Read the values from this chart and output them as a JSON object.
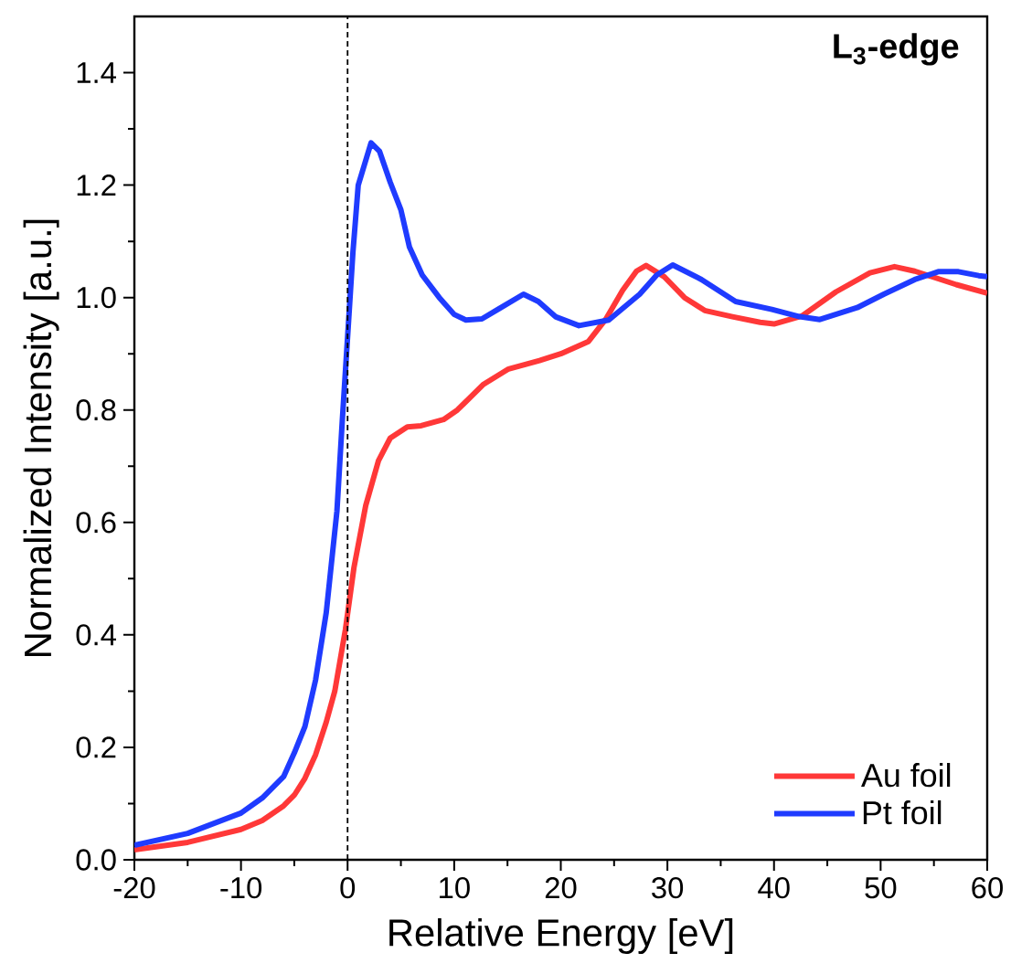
{
  "chart_data": {
    "type": "line",
    "title": "L$_{3}$-edge",
    "xlabel": "Relative Energy [eV]",
    "ylabel": "Normalized Intensity [a.u.]",
    "xlim": [
      -20,
      60
    ],
    "ylim": [
      0,
      1.5
    ],
    "xticks": [
      -20,
      -10,
      0,
      10,
      20,
      30,
      40,
      50,
      60
    ],
    "yticks": [
      {
        "value": 0,
        "label": "0.0"
      },
      0.2,
      0.4,
      0.6,
      0.8,
      {
        "value": 1,
        "label": "1.0"
      },
      1.2,
      1.4
    ],
    "legend": "bottom right",
    "line_style": "solid",
    "marker": "none",
    "ref_lines": [
      {
        "axis": "x",
        "value": 0,
        "color": "#000000",
        "line_style": "dashed"
      }
    ],
    "series": [
      {
        "name": "Au foil",
        "color": "#ff3838",
        "x": [
          -20,
          -15,
          -10,
          -8,
          -6,
          -5,
          -4,
          -3,
          -2,
          -1.2,
          -0.2,
          0.6,
          1.7,
          2.9,
          4,
          5.6,
          6.9,
          9,
          10.3,
          12.7,
          15.1,
          18,
          20,
          22.6,
          24.2,
          25.8,
          27.1,
          28,
          29.7,
          31.6,
          33.5,
          36.1,
          38.7,
          40,
          42.6,
          45.8,
          49,
          51.3,
          53.2,
          57.1,
          60
        ],
        "values": [
          0.018,
          0.031,
          0.054,
          0.07,
          0.096,
          0.115,
          0.145,
          0.187,
          0.245,
          0.3,
          0.41,
          0.52,
          0.63,
          0.71,
          0.75,
          0.77,
          0.772,
          0.783,
          0.8,
          0.845,
          0.873,
          0.888,
          0.9,
          0.922,
          0.961,
          1.013,
          1.047,
          1.057,
          1.037,
          1.0,
          0.977,
          0.966,
          0.956,
          0.953,
          0.967,
          1.01,
          1.044,
          1.055,
          1.047,
          1.023,
          1.008
        ]
      },
      {
        "name": "Pt foil",
        "color": "#1f3bff",
        "x": [
          -20,
          -15,
          -10,
          -8,
          -6,
          -5,
          -4,
          -3,
          -2,
          -1,
          -0.5,
          0,
          0.5,
          1,
          2.2,
          3,
          4,
          5,
          5.8,
          7,
          8.6,
          10,
          11.1,
          12.6,
          14.1,
          16.5,
          17.9,
          19.5,
          21.7,
          24.5,
          27.4,
          29,
          30.5,
          33.2,
          36.4,
          39.8,
          42.4,
          44.3,
          47.8,
          50.3,
          53.2,
          55.4,
          57.3,
          59.2,
          60
        ],
        "values": [
          0.026,
          0.047,
          0.083,
          0.11,
          0.148,
          0.19,
          0.237,
          0.32,
          0.44,
          0.62,
          0.78,
          0.93,
          1.08,
          1.2,
          1.275,
          1.26,
          1.205,
          1.156,
          1.09,
          1.04,
          1.0,
          0.97,
          0.96,
          0.962,
          0.979,
          1.006,
          0.993,
          0.966,
          0.95,
          0.96,
          1.006,
          1.04,
          1.058,
          1.032,
          0.993,
          0.979,
          0.966,
          0.961,
          0.982,
          1.006,
          1.032,
          1.046,
          1.046,
          1.039,
          1.037
        ]
      }
    ]
  }
}
